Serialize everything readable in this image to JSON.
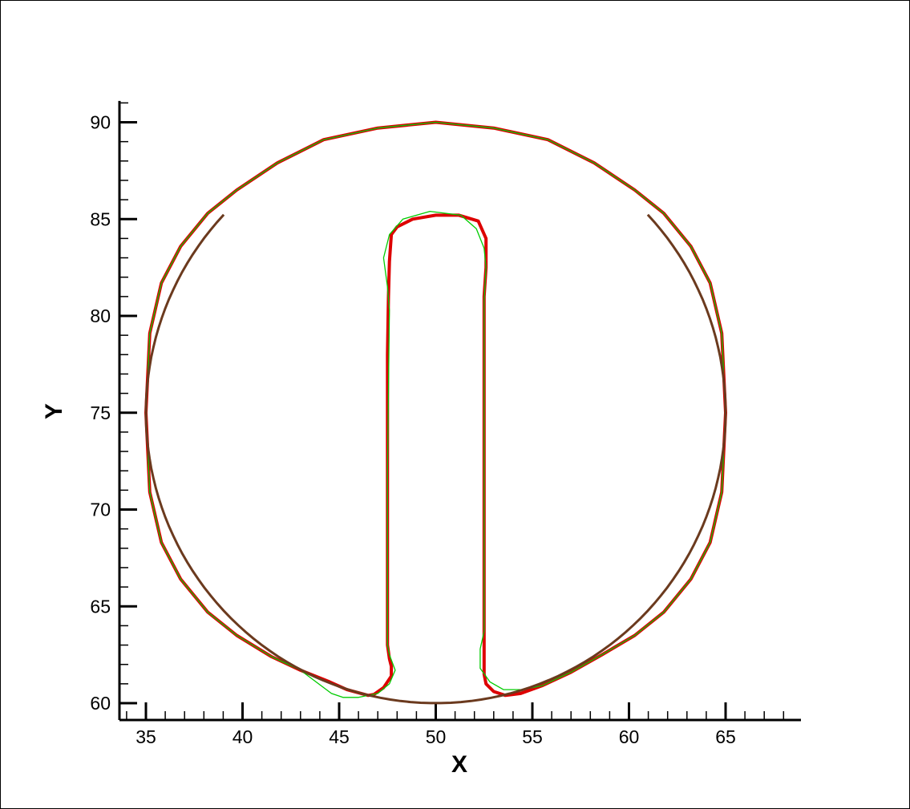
{
  "chart_data": {
    "type": "line",
    "title": "",
    "xlabel": "X",
    "ylabel": "Y",
    "xlim": [
      33.5,
      68.9
    ],
    "ylim": [
      59.1,
      91.1
    ],
    "x_ticks": [
      35,
      40,
      45,
      50,
      55,
      60,
      65
    ],
    "y_ticks": [
      60,
      65,
      70,
      75,
      80,
      85,
      90
    ],
    "x_minor_step": 1,
    "y_minor_step": 1,
    "grid": false,
    "legend": "none",
    "colors": {
      "thick_series": "#dd0000",
      "thin_series": "#00cc00",
      "dark_overlap": "#6b3a1e",
      "axis": "#000000"
    },
    "shape": {
      "circle_center": [
        50,
        75
      ],
      "circle_radius": 15,
      "slot_left_x": 47.5,
      "slot_right_x": 52.5
    },
    "series": [
      {
        "x": [
          46.5,
          45.4,
          44.5,
          43.0,
          41.5,
          39.7,
          38.2,
          36.8,
          35.8,
          35.2,
          35.0,
          35.2,
          35.8,
          36.8,
          38.2,
          39.7,
          41.8,
          44.2,
          47.0,
          50.0,
          53.0,
          55.8,
          58.2,
          60.3,
          61.8,
          63.2,
          64.2,
          64.8,
          65.0,
          64.8,
          64.2,
          63.2,
          61.8,
          60.3,
          58.6,
          57.0,
          55.5,
          54.4,
          53.6,
          53.0,
          52.6,
          52.5,
          52.5,
          52.5,
          52.5,
          52.6,
          52.6,
          52.2,
          51.2,
          50.0,
          48.8,
          48.0,
          47.7,
          47.6,
          47.55,
          47.5,
          47.5,
          47.5,
          47.5,
          47.6,
          47.7,
          47.7,
          47.3,
          46.8,
          46.5
        ],
        "y": [
          60.4,
          60.7,
          61.1,
          61.7,
          62.4,
          63.5,
          64.7,
          66.4,
          68.3,
          70.9,
          75.0,
          79.1,
          81.7,
          83.6,
          85.3,
          86.5,
          87.9,
          89.1,
          89.7,
          90.0,
          89.7,
          89.1,
          87.9,
          86.5,
          85.3,
          83.6,
          81.7,
          79.1,
          75.0,
          70.9,
          68.3,
          66.4,
          64.7,
          63.5,
          62.5,
          61.6,
          60.9,
          60.5,
          60.4,
          60.6,
          61.0,
          61.5,
          63.0,
          72.0,
          81.0,
          82.5,
          84.0,
          84.9,
          85.2,
          85.2,
          85.0,
          84.6,
          84.2,
          82.8,
          81.0,
          78.0,
          72.0,
          66.0,
          63.0,
          62.3,
          61.9,
          61.4,
          60.8,
          60.45,
          60.4
        ]
      },
      {
        "x": [
          46.0,
          45.2,
          44.6,
          43.0,
          41.5,
          39.7,
          38.2,
          36.8,
          35.8,
          35.2,
          35.0,
          35.2,
          35.8,
          36.8,
          38.2,
          39.7,
          41.8,
          44.2,
          47.0,
          50.0,
          53.0,
          55.8,
          58.2,
          60.3,
          61.8,
          63.2,
          64.2,
          64.8,
          65.0,
          64.8,
          64.2,
          63.2,
          61.8,
          60.3,
          58.6,
          57.0,
          55.5,
          54.5,
          53.5,
          52.8,
          52.3,
          52.3,
          52.5,
          52.5,
          52.5,
          52.6,
          52.5,
          52.1,
          51.3,
          49.7,
          48.3,
          47.6,
          47.3,
          47.5,
          47.6,
          47.5,
          47.5,
          47.5,
          47.6,
          47.9,
          47.6,
          47.0,
          46.0
        ],
        "y": [
          60.3,
          60.3,
          60.5,
          61.7,
          62.4,
          63.5,
          64.7,
          66.4,
          68.3,
          70.9,
          75.0,
          79.1,
          81.7,
          83.6,
          85.3,
          86.5,
          87.9,
          89.1,
          89.7,
          90.0,
          89.7,
          89.1,
          87.9,
          86.5,
          85.3,
          83.6,
          81.7,
          79.1,
          75.0,
          70.9,
          68.3,
          66.4,
          64.7,
          63.5,
          62.5,
          61.6,
          60.9,
          60.7,
          60.7,
          61.1,
          61.8,
          62.8,
          63.7,
          72.0,
          80.8,
          82.5,
          83.5,
          84.5,
          85.2,
          85.4,
          85.0,
          84.2,
          83.0,
          81.5,
          80.3,
          72.0,
          66.0,
          63.0,
          62.5,
          61.7,
          61.0,
          60.5,
          60.3
        ]
      }
    ]
  }
}
